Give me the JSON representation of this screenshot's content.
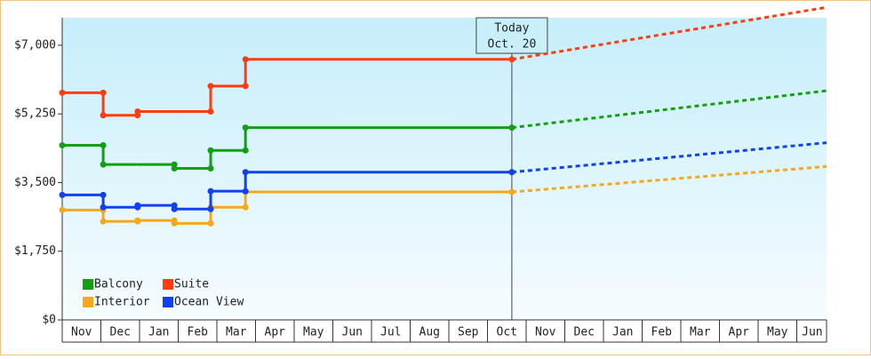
{
  "chart_data": {
    "type": "step",
    "x": [
      0,
      1.06,
      1.95,
      2.9,
      3.84,
      4.74,
      11.63
    ],
    "forecast_x": [
      11.63,
      19.77
    ],
    "xlim": [
      0,
      19.77
    ],
    "xticks": [
      {
        "value": 0.5,
        "label": "Nov"
      },
      {
        "value": 1.5,
        "label": "Dec"
      },
      {
        "value": 2.5,
        "label": "Jan"
      },
      {
        "value": 3.5,
        "label": "Feb"
      },
      {
        "value": 4.5,
        "label": "Mar"
      },
      {
        "value": 5.5,
        "label": "Apr"
      },
      {
        "value": 6.5,
        "label": "May"
      },
      {
        "value": 7.5,
        "label": "Jun"
      },
      {
        "value": 8.5,
        "label": "Jul"
      },
      {
        "value": 9.5,
        "label": "Aug"
      },
      {
        "value": 10.5,
        "label": "Sep"
      },
      {
        "value": 11.5,
        "label": "Oct"
      },
      {
        "value": 12.5,
        "label": "Nov"
      },
      {
        "value": 13.5,
        "label": "Dec"
      },
      {
        "value": 14.5,
        "label": "Jan"
      },
      {
        "value": 15.5,
        "label": "Feb"
      },
      {
        "value": 16.5,
        "label": "Mar"
      },
      {
        "value": 17.5,
        "label": "Apr"
      },
      {
        "value": 18.5,
        "label": "May"
      },
      {
        "value": 19.4,
        "label": "Jun"
      }
    ],
    "ylim": [
      0,
      7700
    ],
    "yticks": [
      {
        "value": 0,
        "label": "$0"
      },
      {
        "value": 1750,
        "label": "$1,750"
      },
      {
        "value": 3500,
        "label": "$3,500"
      },
      {
        "value": 5250,
        "label": "$5,250"
      },
      {
        "value": 7000,
        "label": "$7,000"
      }
    ],
    "series": [
      {
        "name": "Balcony",
        "color": "#12a012",
        "values": [
          4450,
          3960,
          3960,
          3860,
          4320,
          4900,
          4900
        ],
        "forecast": [
          4900,
          5840
        ]
      },
      {
        "name": "Suite",
        "color": "#ff3c10",
        "values": [
          5790,
          5215,
          5310,
          5310,
          5960,
          6640,
          6640
        ],
        "forecast": [
          6640,
          7965
        ]
      },
      {
        "name": "Interior",
        "color": "#f5a81a",
        "values": [
          2800,
          2510,
          2535,
          2460,
          2870,
          3260,
          3260
        ],
        "forecast": [
          3260,
          3910
        ]
      },
      {
        "name": "Ocean View",
        "color": "#1040f0",
        "values": [
          3185,
          2870,
          2920,
          2825,
          3280,
          3765,
          3765
        ],
        "forecast": [
          3765,
          4515
        ]
      }
    ],
    "annotation": {
      "lines": [
        "Today",
        "Oct. 20"
      ],
      "x": 11.63
    }
  }
}
